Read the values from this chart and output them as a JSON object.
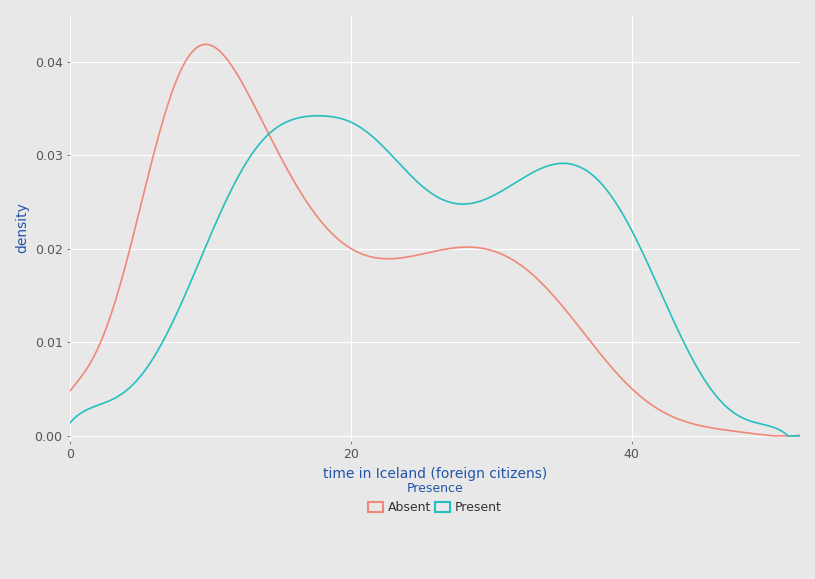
{
  "background_color": "#E8E8E8",
  "plot_bg_color": "#E8E8E8",
  "grid_color": "#FFFFFF",
  "absent_color": "#F08878",
  "present_color": "#26BFBF",
  "xlabel": "time in Iceland (foreign citizens)",
  "ylabel": "density",
  "xlim": [
    0,
    52
  ],
  "ylim": [
    -0.0005,
    0.045
  ],
  "yticks": [
    0.0,
    0.01,
    0.02,
    0.03,
    0.04
  ],
  "xticks": [
    0,
    20,
    40
  ],
  "legend_title": "Presence",
  "legend_labels": [
    "Absent",
    "Present"
  ],
  "axis_fontsize": 10,
  "tick_fontsize": 9,
  "legend_fontsize": 9,
  "absent_x": [
    0,
    2,
    4,
    6,
    8,
    10,
    12,
    14,
    16,
    18,
    20,
    22,
    24,
    26,
    28,
    30,
    32,
    34,
    36,
    38,
    40,
    42,
    44,
    46,
    48,
    50,
    52
  ],
  "absent_y": [
    0.0047,
    0.01,
    0.018,
    0.03,
    0.04,
    0.0425,
    0.038,
    0.032,
    0.027,
    0.023,
    0.02,
    0.0195,
    0.0195,
    0.0195,
    0.019,
    0.02,
    0.019,
    0.016,
    0.012,
    0.008,
    0.005,
    0.003,
    0.0015,
    0.0007,
    0.0003,
    0.0001,
    5e-05
  ],
  "present_x": [
    0,
    2,
    4,
    6,
    8,
    10,
    12,
    14,
    16,
    18,
    20,
    21,
    23,
    25,
    27,
    29,
    31,
    33,
    35,
    37,
    39,
    41,
    43,
    45,
    47,
    49,
    51
  ],
  "present_y": [
    0.0015,
    0.003,
    0.005,
    0.009,
    0.014,
    0.021,
    0.028,
    0.033,
    0.0335,
    0.0335,
    0.0335,
    0.033,
    0.03,
    0.027,
    0.025,
    0.025,
    0.026,
    0.028,
    0.029,
    0.029,
    0.025,
    0.018,
    0.012,
    0.007,
    0.003,
    0.001,
    0.0003
  ]
}
